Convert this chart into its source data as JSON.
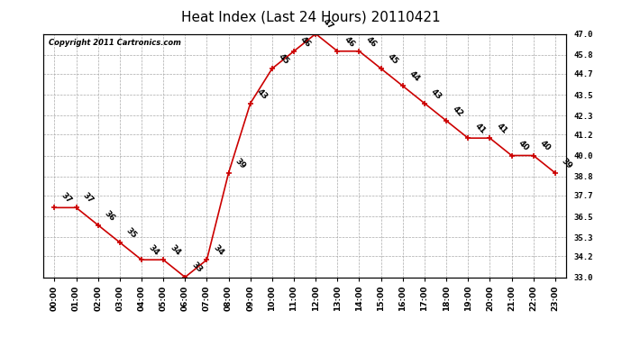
{
  "title": "Heat Index (Last 24 Hours) 20110421",
  "copyright": "Copyright 2011 Cartronics.com",
  "hours": [
    "00:00",
    "01:00",
    "02:00",
    "03:00",
    "04:00",
    "05:00",
    "06:00",
    "07:00",
    "08:00",
    "09:00",
    "10:00",
    "11:00",
    "12:00",
    "13:00",
    "14:00",
    "15:00",
    "16:00",
    "17:00",
    "18:00",
    "19:00",
    "20:00",
    "21:00",
    "22:00",
    "23:00"
  ],
  "values": [
    37,
    37,
    36,
    35,
    34,
    34,
    33,
    34,
    39,
    43,
    45,
    46,
    47,
    46,
    46,
    45,
    44,
    43,
    42,
    41,
    41,
    40,
    40,
    39
  ],
  "line_color": "#cc0000",
  "marker_color": "#cc0000",
  "grid_color": "#aaaaaa",
  "background_color": "#ffffff",
  "ylim_min": 33.0,
  "ylim_max": 47.0,
  "yticks": [
    33.0,
    34.2,
    35.3,
    36.5,
    37.7,
    38.8,
    40.0,
    41.2,
    42.3,
    43.5,
    44.7,
    45.8,
    47.0
  ],
  "title_fontsize": 11,
  "label_fontsize": 6.5,
  "annot_fontsize": 6.5,
  "copyright_fontsize": 6.0
}
